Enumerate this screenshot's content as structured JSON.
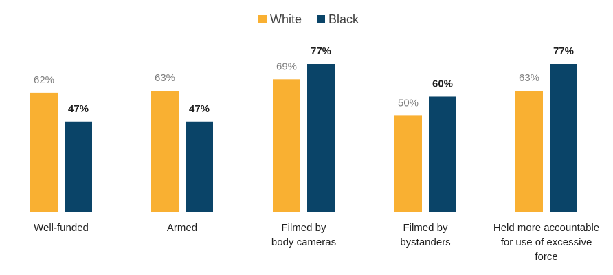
{
  "chart_data": {
    "type": "bar",
    "categories": [
      [
        "Well-funded"
      ],
      [
        "Armed"
      ],
      [
        "Filmed by",
        "body cameras"
      ],
      [
        "Filmed by",
        "bystanders"
      ],
      [
        "Held more accountable",
        "for use of excessive",
        "force"
      ]
    ],
    "series": [
      {
        "name": "White",
        "values": [
          62,
          63,
          69,
          50,
          63
        ],
        "labels": [
          "62%",
          "63%",
          "69%",
          "50%",
          "63%"
        ]
      },
      {
        "name": "Black",
        "values": [
          47,
          47,
          77,
          60,
          77
        ],
        "labels": [
          "47%",
          "47%",
          "77%",
          "60%",
          "77%"
        ]
      }
    ],
    "ylim": [
      0,
      100
    ],
    "grid": false,
    "legend_position": "top",
    "colors": {
      "White": "#f9b032",
      "Black": "#0a4468"
    }
  }
}
